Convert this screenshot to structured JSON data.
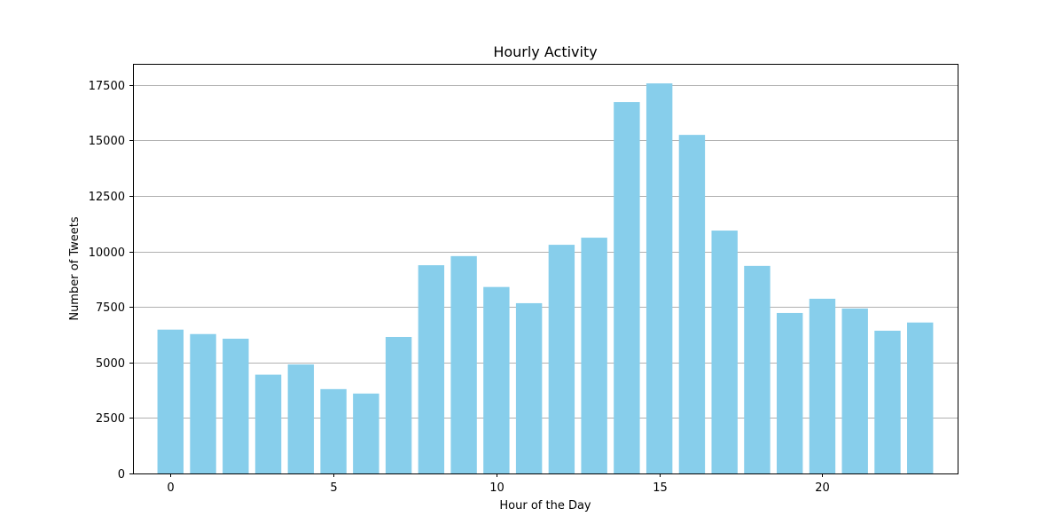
{
  "chart_data": {
    "type": "bar",
    "title": "Hourly Activity",
    "xlabel": "Hour of the Day",
    "ylabel": "Number of Tweets",
    "x": [
      0,
      1,
      2,
      3,
      4,
      5,
      6,
      7,
      8,
      9,
      10,
      11,
      12,
      13,
      14,
      15,
      16,
      17,
      18,
      19,
      20,
      21,
      22,
      23
    ],
    "values": [
      6480,
      6280,
      6070,
      4450,
      4910,
      3800,
      3600,
      6150,
      9380,
      9790,
      8400,
      7670,
      10300,
      10620,
      16730,
      17570,
      15250,
      10940,
      9350,
      7230,
      7870,
      7430,
      6430,
      6800
    ],
    "xlim": [
      -1.15,
      24.15
    ],
    "ylim": [
      0,
      18450
    ],
    "xticks": [
      0,
      5,
      10,
      15,
      20
    ],
    "yticks": [
      0,
      2500,
      5000,
      7500,
      10000,
      12500,
      15000,
      17500
    ],
    "grid": "y-axis",
    "bar_color": "#87CEEB",
    "grid_color": "#b0b0b0"
  }
}
